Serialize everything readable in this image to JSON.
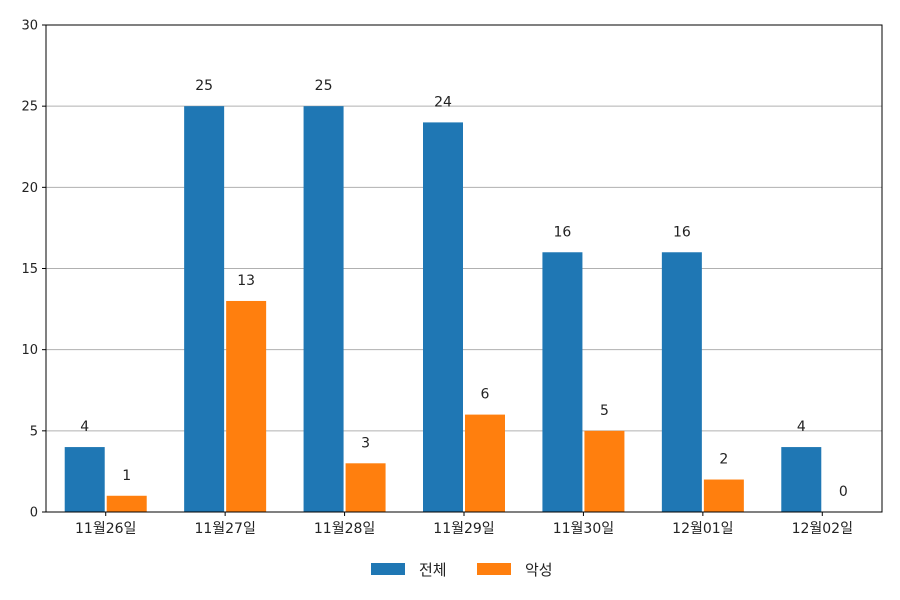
{
  "chart_data": {
    "type": "bar",
    "categories": [
      "11월26일",
      "11월27일",
      "11월28일",
      "11월29일",
      "11월30일",
      "12월01일",
      "12월02일"
    ],
    "series": [
      {
        "name": "전체",
        "values": [
          4,
          25,
          25,
          24,
          16,
          16,
          4
        ],
        "color": "#1f77b4"
      },
      {
        "name": "악성",
        "values": [
          1,
          13,
          3,
          6,
          5,
          2,
          0
        ],
        "color": "#ff7f0e"
      }
    ],
    "ylim": [
      0,
      30
    ],
    "yticks": [
      0,
      5,
      10,
      15,
      20,
      25,
      30
    ],
    "grid": "horizontal",
    "legend": "bottom-center",
    "data_labels": true
  }
}
